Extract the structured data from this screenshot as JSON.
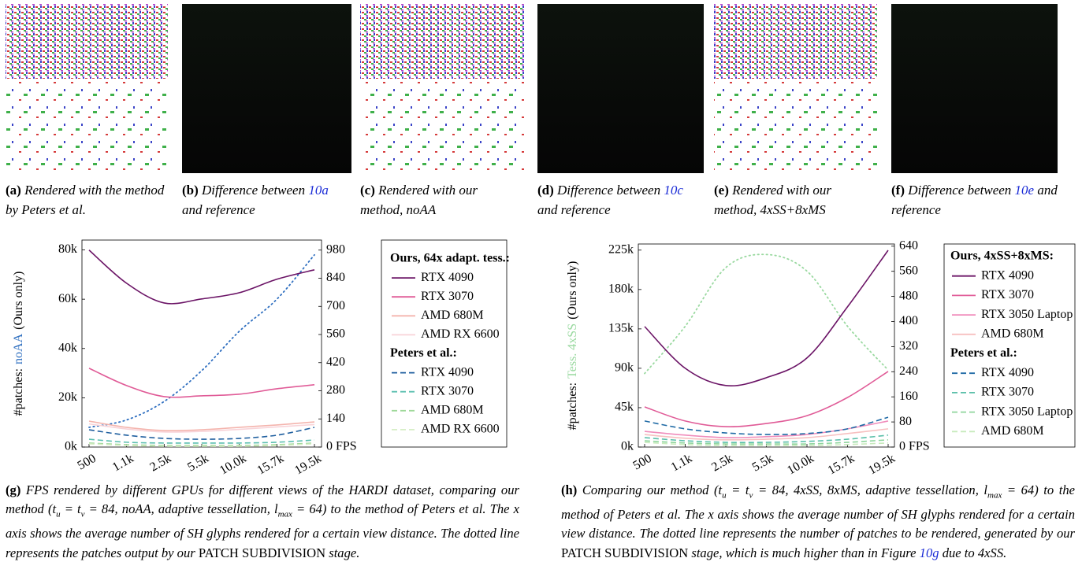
{
  "subfigures": [
    {
      "label": "(a)",
      "caption": [
        {
          "text": "Rendered with the method by Peters et al."
        }
      ]
    },
    {
      "label": "(b)",
      "caption": [
        {
          "text": "Difference between "
        },
        {
          "text": "10a",
          "link": true
        },
        {
          "text": " and reference"
        }
      ]
    },
    {
      "label": "(c)",
      "caption": [
        {
          "text": "Rendered with our method, noAA"
        }
      ]
    },
    {
      "label": "(d)",
      "caption": [
        {
          "text": "Difference between "
        },
        {
          "text": "10c",
          "link": true
        },
        {
          "text": " and reference"
        }
      ]
    },
    {
      "label": "(e)",
      "caption": [
        {
          "text": "Rendered with our method, 4xSS+8xMS"
        }
      ]
    },
    {
      "label": "(f)",
      "caption": [
        {
          "text": "Difference between "
        },
        {
          "text": "10e",
          "link": true
        },
        {
          "text": " and reference"
        }
      ]
    }
  ],
  "chart_data": [
    {
      "type": "line",
      "ylabel": [
        "#patches:",
        "noAA",
        "(Ours only)"
      ],
      "categories": [
        "500",
        "1.1k",
        "2.5k",
        "5.5k",
        "10.0k",
        "15.7k",
        "19.5k"
      ],
      "ylim": [
        0,
        84000
      ],
      "yticks": [
        {
          "value": 0,
          "label": "0k"
        },
        {
          "value": 20000,
          "label": "20k"
        },
        {
          "value": 40000,
          "label": "40k"
        },
        {
          "value": 60000,
          "label": "60k"
        },
        {
          "value": 80000,
          "label": "80k"
        }
      ],
      "y2lim": [
        0,
        1030
      ],
      "y2ticks": [
        {
          "value": 0,
          "label": "0 FPS"
        },
        140,
        280,
        420,
        560,
        700,
        840,
        980
      ],
      "legend_headings": [
        "Ours, 64x adapt. tess.:",
        "Peters et al.:"
      ],
      "series": [
        {
          "color": "#2f6fc0",
          "dash": "dotted",
          "values": [
            8000,
            11000,
            18500,
            31000,
            47000,
            60000,
            78000
          ]
        },
        {
          "name": "RTX 4090",
          "color": "#6b1466",
          "dash": "solid",
          "axis": "y2",
          "values": [
            980,
            815,
            717,
            737,
            768,
            835,
            882
          ]
        },
        {
          "name": "RTX 3070",
          "color": "#e05b97",
          "dash": "solid",
          "axis": "y2",
          "values": [
            392,
            306,
            251,
            255,
            263,
            290,
            310
          ]
        },
        {
          "name": "AMD 680M",
          "color": "#f4b4ad",
          "dash": "solid",
          "axis": "y2",
          "values": [
            129,
            98,
            82,
            86,
            98,
            110,
            125
          ]
        },
        {
          "name": "AMD RX 6600",
          "color": "#f8d3d8",
          "dash": "solid",
          "axis": "y2",
          "values": [
            115,
            90,
            75,
            78,
            88,
            100,
            112
          ]
        },
        {
          "name": "RTX 4090",
          "color": "#1f5f9f",
          "dash": "dashed",
          "axis": "y2",
          "values": [
            86,
            59,
            43,
            39,
            43,
            59,
            98
          ]
        },
        {
          "name": "RTX 3070",
          "color": "#5cbfb0",
          "dash": "dashed",
          "axis": "y2",
          "values": [
            39,
            24,
            20,
            20,
            20,
            24,
            35
          ]
        },
        {
          "name": "AMD 680M",
          "color": "#9fd89a",
          "dash": "dashed",
          "axis": "y2",
          "values": [
            20,
            12,
            8,
            8,
            8,
            12,
            20
          ]
        },
        {
          "name": "AMD RX 6600",
          "color": "#d6eec6",
          "dash": "dashed",
          "axis": "y2",
          "values": [
            16,
            8,
            4,
            4,
            4,
            8,
            16
          ]
        }
      ]
    },
    {
      "type": "line",
      "ylabel": [
        "#patches:",
        "Tess. 4xSS",
        "(Ours only)"
      ],
      "categories": [
        "500",
        "1.1k",
        "2.5k",
        "5.5k",
        "10.0k",
        "15.7k",
        "19.5k"
      ],
      "ylim": [
        0,
        232000
      ],
      "yticks": [
        {
          "value": 0,
          "label": "0k"
        },
        {
          "value": 45000,
          "label": "45k"
        },
        {
          "value": 90000,
          "label": "90k"
        },
        {
          "value": 135000,
          "label": "135k"
        },
        {
          "value": 180000,
          "label": "180k"
        },
        {
          "value": 225000,
          "label": "225k"
        }
      ],
      "y2lim": [
        0,
        647
      ],
      "y2ticks": [
        {
          "value": 0,
          "label": "0 FPS"
        },
        80,
        160,
        240,
        320,
        400,
        480,
        560,
        640
      ],
      "legend_headings": [
        "Ours, 4xSS+8xMS:",
        "Peters et al.:"
      ],
      "series": [
        {
          "color": "#9ad9a0",
          "dash": "dotted",
          "values": [
            84000,
            138000,
            205000,
            220000,
            201000,
            138000,
            88000
          ]
        },
        {
          "name": "RTX 4090",
          "color": "#6b1466",
          "dash": "solid",
          "axis": "y2",
          "values": [
            384,
            251,
            196,
            221,
            284,
            447,
            627
          ]
        },
        {
          "name": "RTX 3070",
          "color": "#e05b97",
          "dash": "solid",
          "axis": "y2",
          "values": [
            128,
            83,
            65,
            75,
            100,
            158,
            241
          ]
        },
        {
          "name": "RTX 3050 Laptop",
          "color": "#f08cbb",
          "dash": "solid",
          "axis": "y2",
          "values": [
            50,
            38,
            30,
            33,
            40,
            58,
            83
          ]
        },
        {
          "name": "AMD 680M",
          "color": "#f7c0c0",
          "dash": "solid",
          "axis": "y2",
          "values": [
            40,
            28,
            23,
            25,
            30,
            43,
            58
          ]
        },
        {
          "name": "RTX 4090",
          "color": "#1f6aa5",
          "dash": "dashed",
          "axis": "y2",
          "values": [
            83,
            58,
            45,
            40,
            43,
            58,
            95
          ]
        },
        {
          "name": "RTX 3070",
          "color": "#5abfa9",
          "dash": "dashed",
          "axis": "y2",
          "values": [
            30,
            20,
            15,
            15,
            18,
            25,
            38
          ]
        },
        {
          "name": "RTX 3050 Laptop",
          "color": "#8fd59d",
          "dash": "dashed",
          "axis": "y2",
          "values": [
            20,
            13,
            10,
            10,
            10,
            15,
            23
          ]
        },
        {
          "name": "AMD 680M",
          "color": "#c8ebbd",
          "dash": "dashed",
          "axis": "y2",
          "values": [
            15,
            8,
            5,
            5,
            5,
            8,
            13
          ]
        }
      ]
    }
  ],
  "captions": [
    {
      "label": "(g)",
      "parts": [
        {
          "text": "FPS rendered by different GPUs for different views of the HARDI dataset, comparing our method ("
        },
        {
          "text": "t",
          "sub": "u"
        },
        {
          "text": " = "
        },
        {
          "text": "t",
          "sub": "v"
        },
        {
          "text": " = 84, noAA, adaptive tessellation, "
        },
        {
          "text": "l",
          "sub": "max"
        },
        {
          "text": " = 64) to the method of Peters et al. The x axis shows the average number of SH glyphs rendered for a certain view distance. The dotted line represents the patches output by our "
        },
        {
          "text": "PATCH SUBDIVISION",
          "smallcaps": true
        },
        {
          "text": " stage."
        }
      ]
    },
    {
      "label": "(h)",
      "parts": [
        {
          "text": "Comparing our method ("
        },
        {
          "text": "t",
          "sub": "u"
        },
        {
          "text": " = "
        },
        {
          "text": "t",
          "sub": "v"
        },
        {
          "text": " = 84, 4xSS, 8xMS, adaptive tessellation, "
        },
        {
          "text": "l",
          "sub": "max"
        },
        {
          "text": " = 64) to the method of Peters et al. The x axis shows the average number of SH glyphs rendered for a certain view distance. The dotted line represents the number of patches to be rendered, generated by our "
        },
        {
          "text": "PATCH SUBDIVISION",
          "smallcaps": true
        },
        {
          "text": " stage, which is much higher than in Figure "
        },
        {
          "text": "10g",
          "link": true
        },
        {
          "text": " due to 4xSS."
        }
      ]
    }
  ]
}
